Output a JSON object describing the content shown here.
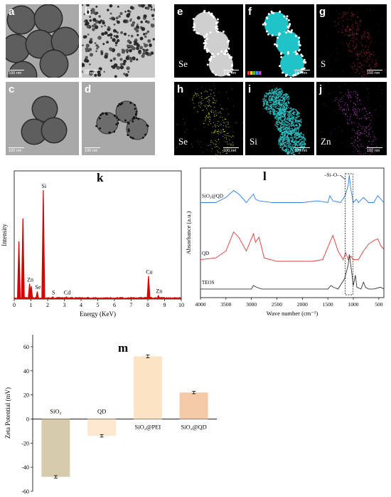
{
  "micrographs": [
    {
      "letter": "a",
      "scale": "100 nm",
      "kind": "tem-spheres"
    },
    {
      "letter": "b",
      "scale": "50 nm",
      "kind": "tem-dots"
    },
    {
      "letter": "c",
      "scale": "100 nm",
      "kind": "tem-spheres"
    },
    {
      "letter": "d",
      "scale": "100 nm",
      "kind": "tem-decorated"
    },
    {
      "letter": "e",
      "scale": "100 nm",
      "element": "Se",
      "kind": "haadf"
    },
    {
      "letter": "f",
      "scale": "100 nm",
      "kind": "overlay"
    },
    {
      "letter": "g",
      "scale": "100 nm",
      "element": "S",
      "kind": "map",
      "color": "#c4283c"
    },
    {
      "letter": "h",
      "scale": "100 nm",
      "element": "Se",
      "kind": "map",
      "color": "#c8c62a"
    },
    {
      "letter": "i",
      "scale": "100 nm",
      "element": "Si",
      "kind": "map",
      "color": "#2fc3c6"
    },
    {
      "letter": "j",
      "scale": "100 nm",
      "element": "Zn",
      "kind": "map",
      "color": "#c040c8"
    }
  ],
  "colors": {
    "eds": "#d90000",
    "sio2_qd": "#2e7fe0",
    "qd": "#e53535",
    "teos": "#333333",
    "bar_sio2": "#d6ccac",
    "bar_qd": "#fde7cf",
    "bar_pei": "#fbe3c3",
    "bar_sio2qd": "#f3c9a8"
  },
  "chart_data": [
    {
      "panel": "k",
      "type": "bar",
      "xlabel": "Energy (KeV)",
      "ylabel": "Intensity",
      "xlim": [
        0,
        10
      ],
      "ylim": [
        0,
        1
      ],
      "xticks": [
        "0",
        "1",
        "2",
        "3",
        "4",
        "5",
        "6",
        "7",
        "8",
        "9",
        "10"
      ],
      "peaks": [
        {
          "x": 0.28,
          "y": 0.45,
          "label": ""
        },
        {
          "x": 0.52,
          "y": 0.63,
          "label": ""
        },
        {
          "x": 0.92,
          "y": 0.12,
          "label": "Zn"
        },
        {
          "x": 1.02,
          "y": 0.1,
          "label": ""
        },
        {
          "x": 1.38,
          "y": 0.06,
          "label": "Se"
        },
        {
          "x": 1.74,
          "y": 0.85,
          "label": "Si"
        },
        {
          "x": 2.31,
          "y": 0.02,
          "label": "S"
        },
        {
          "x": 3.13,
          "y": 0.02,
          "label": "Cd"
        },
        {
          "x": 8.04,
          "y": 0.18,
          "label": "Cu"
        },
        {
          "x": 8.63,
          "y": 0.03,
          "label": "Zn"
        }
      ]
    },
    {
      "panel": "l",
      "type": "line",
      "xlabel": "Wave number (cm⁻¹)",
      "ylabel": "Absorbance (a.u.)",
      "xlim": [
        4000,
        400
      ],
      "xticks": [
        4000,
        3500,
        3000,
        2500,
        2000,
        1500,
        1000,
        500
      ],
      "annotation": "–Si–O–",
      "series": [
        {
          "name": "SiO₂@QD",
          "points": [
            [
              4000,
              0.8
            ],
            [
              3700,
              0.8
            ],
            [
              3500,
              0.83
            ],
            [
              3350,
              0.87
            ],
            [
              3250,
              0.85
            ],
            [
              3100,
              0.8
            ],
            [
              2960,
              0.85
            ],
            [
              2920,
              0.82
            ],
            [
              2850,
              0.81
            ],
            [
              2600,
              0.8
            ],
            [
              2000,
              0.8
            ],
            [
              1700,
              0.81
            ],
            [
              1500,
              0.8
            ],
            [
              1460,
              0.84
            ],
            [
              1400,
              0.81
            ],
            [
              1250,
              0.8
            ],
            [
              1160,
              0.84
            ],
            [
              1100,
              0.9
            ],
            [
              1080,
              0.96
            ],
            [
              1050,
              0.88
            ],
            [
              1000,
              0.8
            ],
            [
              940,
              0.82
            ],
            [
              900,
              0.8
            ],
            [
              800,
              0.83
            ],
            [
              700,
              0.8
            ],
            [
              600,
              0.8
            ],
            [
              520,
              0.84
            ],
            [
              460,
              0.82
            ],
            [
              400,
              0.8
            ]
          ]
        },
        {
          "name": "QD",
          "points": [
            [
              4000,
              0.47
            ],
            [
              3700,
              0.48
            ],
            [
              3500,
              0.52
            ],
            [
              3350,
              0.63
            ],
            [
              3250,
              0.6
            ],
            [
              3100,
              0.52
            ],
            [
              2960,
              0.62
            ],
            [
              2920,
              0.57
            ],
            [
              2850,
              0.6
            ],
            [
              2750,
              0.48
            ],
            [
              2500,
              0.46
            ],
            [
              2000,
              0.46
            ],
            [
              1800,
              0.46
            ],
            [
              1600,
              0.47
            ],
            [
              1460,
              0.57
            ],
            [
              1400,
              0.61
            ],
            [
              1300,
              0.52
            ],
            [
              1200,
              0.47
            ],
            [
              1150,
              0.51
            ],
            [
              1100,
              0.47
            ],
            [
              1050,
              0.49
            ],
            [
              1000,
              0.47
            ],
            [
              900,
              0.47
            ],
            [
              800,
              0.52
            ],
            [
              700,
              0.56
            ],
            [
              600,
              0.58
            ],
            [
              520,
              0.59
            ],
            [
              460,
              0.55
            ],
            [
              400,
              0.53
            ]
          ]
        },
        {
          "name": "TEOS",
          "points": [
            [
              4000,
              0.3
            ],
            [
              3500,
              0.3
            ],
            [
              3000,
              0.3
            ],
            [
              2960,
              0.32
            ],
            [
              2900,
              0.31
            ],
            [
              2800,
              0.3
            ],
            [
              2000,
              0.3
            ],
            [
              1500,
              0.3
            ],
            [
              1440,
              0.32
            ],
            [
              1390,
              0.31
            ],
            [
              1300,
              0.3
            ],
            [
              1170,
              0.36
            ],
            [
              1100,
              0.44
            ],
            [
              1080,
              0.5
            ],
            [
              1050,
              0.44
            ],
            [
              1000,
              0.32
            ],
            [
              960,
              0.38
            ],
            [
              930,
              0.31
            ],
            [
              850,
              0.3
            ],
            [
              800,
              0.34
            ],
            [
              760,
              0.31
            ],
            [
              700,
              0.3
            ],
            [
              600,
              0.3
            ],
            [
              470,
              0.31
            ],
            [
              400,
              0.3
            ]
          ]
        }
      ]
    },
    {
      "panel": "m",
      "type": "bar",
      "ylabel": "Zeta Potential (mV)",
      "ylim": [
        -60,
        70
      ],
      "yticks": [
        -60,
        -40,
        -20,
        0,
        20,
        40,
        60
      ],
      "categories": [
        "SiO₂",
        "QD",
        "SiO₂@PEI",
        "SiO₂@QD"
      ],
      "values": [
        -48,
        -14,
        52,
        22
      ],
      "errors": [
        1,
        1,
        1.2,
        1
      ]
    }
  ]
}
